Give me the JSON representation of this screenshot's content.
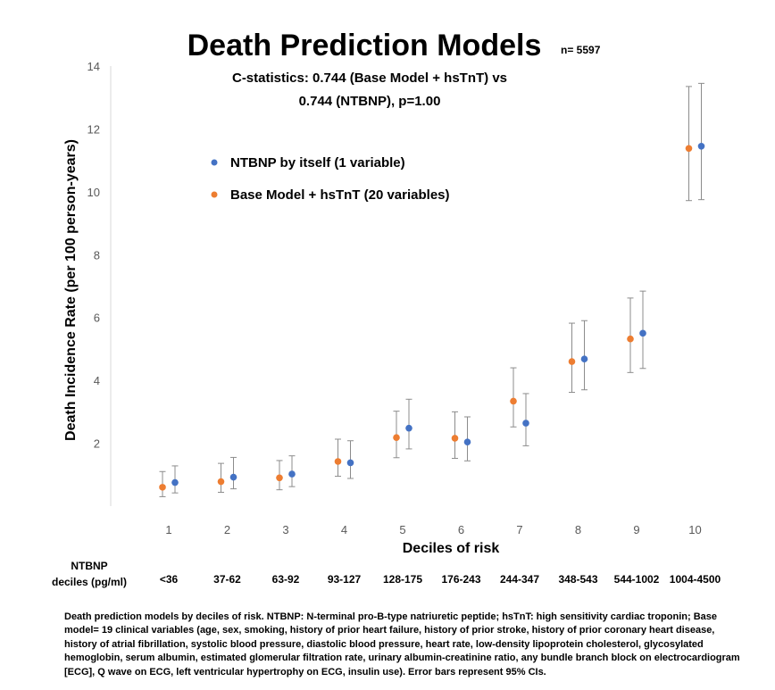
{
  "chart_data": {
    "type": "scatter",
    "title": "Death Prediction Models",
    "n_label": "n= 5597",
    "subtitle_lines": [
      "C-statistics: 0.744 (Base Model + hsTnT) vs",
      "0.744 (NTBNP), p=1.00"
    ],
    "xlabel": "Deciles of risk",
    "ylabel": "Death Incidence Rate (per 100 person-years)",
    "ylim": [
      0,
      14
    ],
    "yticks": [
      2,
      4,
      6,
      8,
      10,
      12,
      14
    ],
    "grid": false,
    "legend_position": "upper-left",
    "categories": [
      "1",
      "2",
      "3",
      "4",
      "5",
      "6",
      "7",
      "8",
      "9",
      "10"
    ],
    "series": [
      {
        "name": "NTBNP by itself (1 variable)",
        "color": "#4472C4",
        "values": [
          0.75,
          0.92,
          1.02,
          1.38,
          2.48,
          2.04,
          2.64,
          4.68,
          5.5,
          11.45
        ],
        "ci_low": [
          0.42,
          0.55,
          0.62,
          0.88,
          1.82,
          1.44,
          1.92,
          3.7,
          4.38,
          9.75
        ],
        "ci_high": [
          1.28,
          1.55,
          1.6,
          2.08,
          3.4,
          2.84,
          3.58,
          5.9,
          6.84,
          13.45
        ]
      },
      {
        "name": "Base Model + hsTnT (20 variables)",
        "color": "#ED7D31",
        "values": [
          0.6,
          0.78,
          0.9,
          1.42,
          2.18,
          2.16,
          3.34,
          4.6,
          5.32,
          11.38
        ],
        "ci_low": [
          0.3,
          0.44,
          0.52,
          0.95,
          1.54,
          1.52,
          2.52,
          3.62,
          4.25,
          9.72
        ],
        "ci_high": [
          1.1,
          1.36,
          1.45,
          2.13,
          3.02,
          3.0,
          4.4,
          5.82,
          6.62,
          13.35
        ]
      }
    ],
    "secondary_axis": {
      "label_lines": [
        "NTBNP",
        "deciles (pg/ml)"
      ],
      "labels": [
        "<36",
        "37-62",
        "63-92",
        "93-127",
        "128-175",
        "176-243",
        "244-347",
        "348-543",
        "544-1002",
        "1004-4500"
      ]
    },
    "caption": "Death prediction models by deciles of risk. NTBNP: N-terminal pro-B-type natriuretic peptide; hsTnT: high sensitivity cardiac troponin; Base model= 19 clinical variables (age, sex, smoking, history of prior heart failure, history of prior stroke, history of prior coronary heart disease, history of atrial fibrillation, systolic blood pressure, diastolic blood pressure, heart rate, low-density lipoprotein cholesterol, glycosylated hemoglobin, serum albumin, estimated glomerular filtration rate, urinary albumin-creatinine ratio, any bundle branch block on electrocardiogram [ECG], Q wave on ECG, left ventricular hypertrophy on ECG, insulin use). Error bars represent 95% CIs."
  }
}
